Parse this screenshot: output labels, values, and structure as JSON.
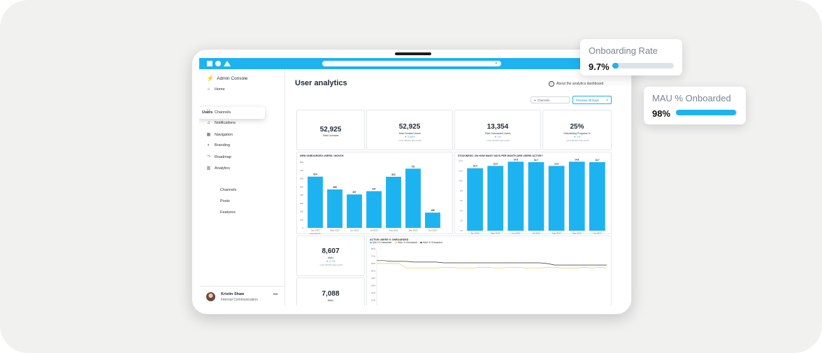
{
  "app": {
    "title": "Admin Console"
  },
  "sidebar": {
    "items": [
      {
        "label": "Home",
        "icon": "home-icon"
      },
      {
        "label": "Users",
        "icon": "users-icon"
      },
      {
        "label": "Channels",
        "icon": "channels-icon"
      },
      {
        "label": "Notifications",
        "icon": "bell-icon"
      },
      {
        "label": "Navigation",
        "icon": "grid-icon"
      },
      {
        "label": "Branding",
        "icon": "palette-icon"
      },
      {
        "label": "Roadmap",
        "icon": "roadmap-icon"
      },
      {
        "label": "Analytics",
        "icon": "bar-chart-icon"
      }
    ],
    "sub_items": [
      {
        "label": "Channels"
      },
      {
        "label": "Posts"
      },
      {
        "label": "Features"
      }
    ],
    "user": {
      "name": "Kristin Shaw",
      "role": "Internal Communication"
    }
  },
  "main": {
    "title": "User analytics",
    "about_link": "About the analytics dashboard",
    "filter_placeholder": "Channels",
    "period": "Previous 30 Days"
  },
  "kpis": [
    {
      "value": "52,925",
      "label": "Total Licenses",
      "change": "",
      "sub": ""
    },
    {
      "value": "52,925",
      "label": "Total Created Users",
      "change": "▼ 0.08%",
      "sub": "↓ prior 30 DAY last month"
    },
    {
      "value": "13,354",
      "label": "Total Onboarded Users",
      "change": "▼ 1%",
      "sub": "↓ prior 30 DAY last month"
    },
    {
      "value": "25%",
      "label": "Onboarding Progress %",
      "change": "▼ 1%",
      "sub": "↓ prior 30 DAY last month"
    }
  ],
  "mau": {
    "value": "8,607",
    "label": "MAU",
    "change": "▼ 0.7%",
    "sub": "↓ prior 30 DAY last month"
  },
  "wau": {
    "value": "7,088",
    "label": "WAU"
  },
  "floats": {
    "onboarding_rate": {
      "title": "Onboarding Rate",
      "value": "9.7%",
      "fraction": 0.097
    },
    "mau_onboarded": {
      "title": "MAU % Onboarded",
      "value": "98%",
      "fraction": 0.98
    }
  },
  "colors": {
    "accent": "#1db3f0",
    "line_dark": "#333333",
    "line_yellow": "#f5c14b"
  },
  "chart_data": [
    {
      "type": "bar",
      "title": "NEW ONBOARDED USERS / MONTH",
      "categories": [
        "Apr 2023",
        "May 2023",
        "Jun 2023",
        "Jul 2023",
        "Aug 2023",
        "Sep 2023",
        "Oct 2023"
      ],
      "values": [
        624,
        468,
        407,
        447,
        622,
        721,
        186
      ],
      "yticks": [
        "0",
        "100",
        "200",
        "300",
        "400",
        "500",
        "600",
        "700",
        "800"
      ],
      "ylim": [
        0,
        800
      ],
      "xlabel": "Year-Month"
    },
    {
      "type": "bar",
      "title": "STICKINESS: ON HOW MANY DAYS PER MONTH ARE USERS ACTIVE?",
      "categories": [
        "Apr 2023",
        "May 2023",
        "Jun 2023",
        "Jul 2023",
        "Aug 2023",
        "Sep 2023",
        "Oct 2023"
      ],
      "values": [
        13.4,
        13.9,
        14.8,
        14.7,
        13.9,
        14.8,
        14.7
      ],
      "yticks": [
        "0.0",
        "2.0",
        "4.0",
        "6.0",
        "8.0",
        "10.0",
        "12.0",
        "14.0"
      ],
      "ylim": [
        0,
        15
      ]
    },
    {
      "type": "line",
      "title": "ACTIVE USERS % ONBOARDED",
      "series": [
        {
          "name": "DAU % Onboarded",
          "color": "#1db3f0",
          "values": []
        },
        {
          "name": "WAU % Onboarded",
          "color": "#f5c14b",
          "values": [
            60,
            60,
            60,
            60,
            54,
            54,
            54,
            54,
            54,
            55,
            55,
            54,
            54,
            54,
            55,
            55,
            54,
            54,
            55,
            55,
            54,
            54,
            54,
            55,
            55,
            54,
            54,
            54,
            55,
            54,
            55,
            54
          ]
        },
        {
          "name": "MAU % Onboarded",
          "color": "#333333",
          "values": [
            64,
            64,
            63,
            63,
            63,
            62,
            62,
            62,
            62,
            61,
            61,
            61,
            61,
            61,
            61,
            61,
            61,
            61,
            61,
            61,
            61,
            61,
            61,
            60,
            58,
            58,
            58,
            58,
            58,
            58,
            58,
            58
          ]
        }
      ],
      "yticks": [
        "0%",
        "10%",
        "20%",
        "30%",
        "40%",
        "50%",
        "60%",
        "70%",
        "80%"
      ],
      "ylim": [
        0,
        80
      ]
    }
  ]
}
